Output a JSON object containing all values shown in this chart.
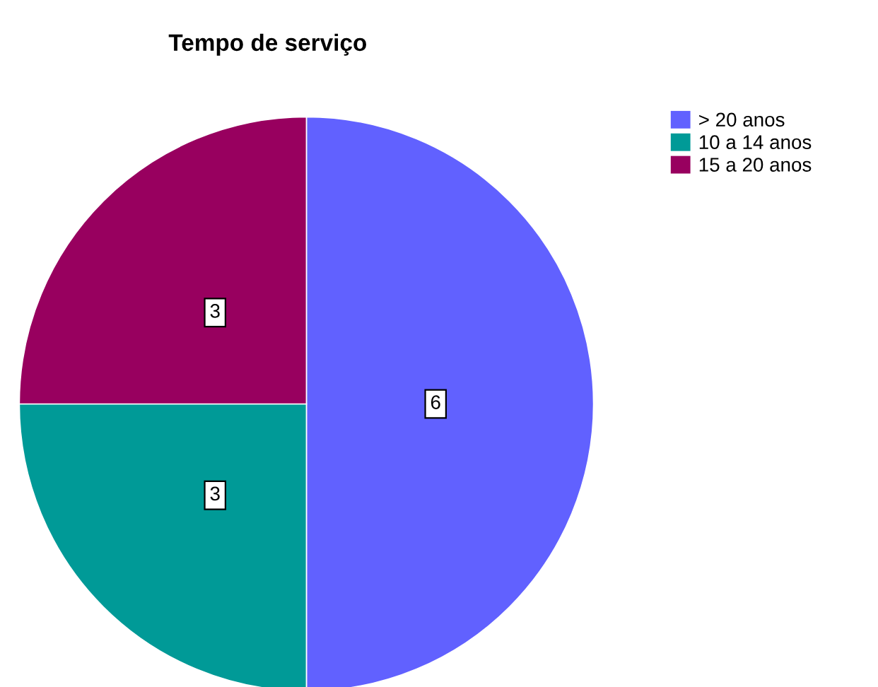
{
  "chart_data": {
    "type": "pie",
    "title": "Tempo de serviço",
    "categories": [
      "> 20 anos",
      "10 a 14 anos",
      "15 a 20 anos"
    ],
    "values": [
      6,
      3,
      3
    ],
    "colors": [
      "#6161ff",
      "#009a97",
      "#98005f"
    ],
    "data_labels": true,
    "legend": "top right"
  }
}
